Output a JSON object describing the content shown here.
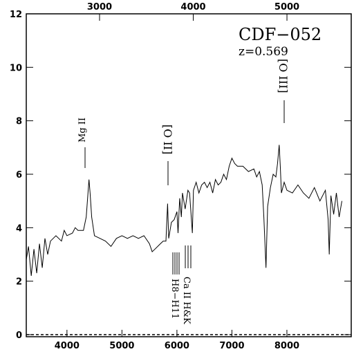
{
  "chart_data": {
    "type": "line",
    "title": "CDF−052",
    "subtitle": "z=0.569",
    "annotations": [
      "Mg II",
      "[O II]",
      "[O III]",
      "Ca II H&K",
      "H8−H11"
    ],
    "x": [
      3260,
      3300,
      3350,
      3400,
      3450,
      3500,
      3550,
      3600,
      3650,
      3700,
      3800,
      3900,
      3950,
      4000,
      4100,
      4150,
      4200,
      4300,
      4350,
      4400,
      4420,
      4450,
      4500,
      4600,
      4700,
      4800,
      4900,
      5000,
      5100,
      5200,
      5300,
      5400,
      5500,
      5550,
      5600,
      5700,
      5750,
      5800,
      5830,
      5850,
      5900,
      5950,
      6000,
      6020,
      6050,
      6080,
      6100,
      6150,
      6200,
      6230,
      6260,
      6280,
      6300,
      6350,
      6400,
      6450,
      6500,
      6550,
      6600,
      6650,
      6700,
      6750,
      6800,
      6850,
      6900,
      6950,
      7000,
      7050,
      7100,
      7200,
      7300,
      7400,
      7450,
      7500,
      7550,
      7580,
      7620,
      7650,
      7700,
      7750,
      7800,
      7830,
      7860,
      7880,
      7900,
      7950,
      8000,
      8100,
      8200,
      8300,
      8400,
      8500,
      8600,
      8700,
      8750,
      8770,
      8800,
      8850,
      8900,
      8950,
      9000
    ],
    "series": [
      {
        "color": "#000000",
        "values": [
          2.8,
          3.3,
          2.2,
          3.2,
          2.3,
          3.4,
          2.5,
          3.6,
          3.0,
          3.5,
          3.7,
          3.5,
          3.9,
          3.7,
          3.8,
          4.0,
          3.9,
          3.9,
          4.4,
          5.8,
          5.3,
          4.4,
          3.7,
          3.6,
          3.5,
          3.3,
          3.6,
          3.7,
          3.6,
          3.7,
          3.6,
          3.7,
          3.4,
          3.1,
          3.2,
          3.4,
          3.5,
          3.5,
          4.9,
          3.6,
          4.2,
          4.3,
          4.6,
          3.8,
          5.1,
          4.4,
          5.3,
          4.7,
          5.4,
          5.3,
          4.4,
          3.8,
          5.4,
          5.7,
          5.3,
          5.6,
          5.7,
          5.5,
          5.7,
          5.3,
          5.8,
          5.6,
          5.7,
          6.0,
          5.8,
          6.3,
          6.6,
          6.4,
          6.3,
          6.3,
          6.1,
          6.2,
          5.9,
          6.1,
          5.6,
          4.4,
          2.5,
          4.8,
          5.5,
          6.0,
          5.9,
          6.4,
          7.1,
          6.3,
          5.3,
          5.7,
          5.4,
          5.3,
          5.6,
          5.3,
          5.1,
          5.5,
          5.0,
          5.4,
          4.3,
          3.0,
          5.2,
          4.5,
          5.3,
          4.4,
          5.0
        ]
      }
    ],
    "xlim": [
      3260,
      9170
    ],
    "xticks": [
      4000,
      5000,
      6000,
      7000,
      8000
    ],
    "x2lim": [
      2218,
      5686
    ],
    "x2ticks": [
      3000,
      4000,
      5000
    ],
    "ylim": [
      0,
      12
    ],
    "yticks": [
      0,
      2,
      4,
      6,
      8,
      10,
      12
    ],
    "zero_line": true
  }
}
